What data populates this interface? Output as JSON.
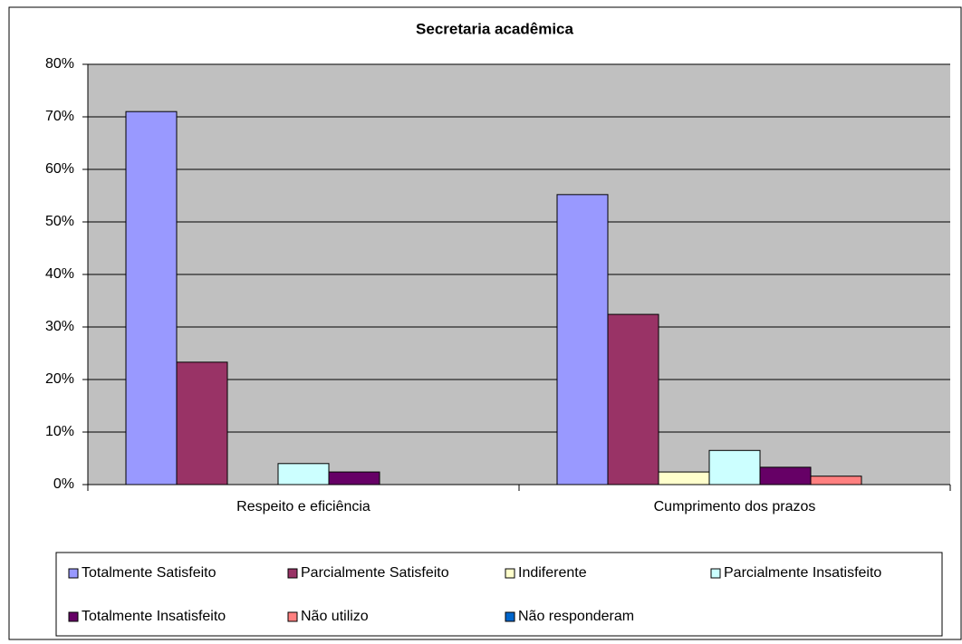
{
  "chart_data": {
    "type": "bar",
    "title": "Secretaria acadêmica",
    "categories": [
      "Respeito e eficiência",
      "Cumprimento dos prazos"
    ],
    "series": [
      {
        "name": "Totalmente Satisfeito",
        "color": "#9999ff",
        "values": [
          71,
          55.2
        ]
      },
      {
        "name": "Parcialmente Satisfeito",
        "color": "#993366",
        "values": [
          23.3,
          32.4
        ]
      },
      {
        "name": "Indiferente",
        "color": "#ffffcc",
        "values": [
          0,
          2.4
        ]
      },
      {
        "name": "Parcialmente Insatisfeito",
        "color": "#ccffff",
        "values": [
          4,
          6.5
        ]
      },
      {
        "name": "Totalmente Insatisfeito",
        "color": "#660066",
        "values": [
          2.4,
          3.3
        ]
      },
      {
        "name": "Não utilizo",
        "color": "#ff8080",
        "values": [
          0,
          1.6
        ]
      },
      {
        "name": "Não responderam",
        "color": "#0066cc",
        "values": [
          0,
          0
        ]
      }
    ],
    "ylim": [
      0,
      80
    ],
    "yticks": [
      {
        "value": 0,
        "label": "0%"
      },
      {
        "value": 10,
        "label": "10%"
      },
      {
        "value": 20,
        "label": "20%"
      },
      {
        "value": 30,
        "label": "30%"
      },
      {
        "value": 40,
        "label": "40%"
      },
      {
        "value": 50,
        "label": "50%"
      },
      {
        "value": 60,
        "label": "60%"
      },
      {
        "value": 70,
        "label": "70%"
      },
      {
        "value": 80,
        "label": "80%"
      }
    ],
    "grid": true,
    "legend": "bottom"
  }
}
